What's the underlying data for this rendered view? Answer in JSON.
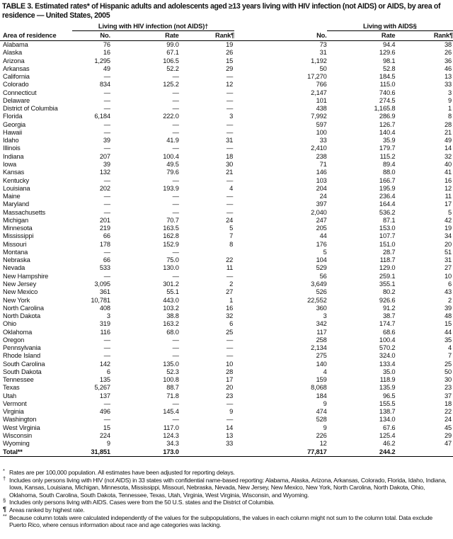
{
  "title": "TABLE 3. Estimated rates* of Hispanic adults and adolescents aged ≥13 years living with HIV infection (not AIDS) or AIDS, by area of residence — United States, 2005",
  "groups": {
    "hiv": "Living with HIV infection (not AIDS)†",
    "aids": "Living with AIDS§"
  },
  "columns": {
    "area": "Area of residence",
    "no": "No.",
    "rate": "Rate",
    "rank": "Rank¶"
  },
  "rows": [
    [
      "Alabama",
      "76",
      "99.0",
      "19",
      "73",
      "94.4",
      "38"
    ],
    [
      "Alaska",
      "16",
      "67.1",
      "26",
      "31",
      "129.6",
      "26"
    ],
    [
      "Arizona",
      "1,295",
      "106.5",
      "15",
      "1,192",
      "98.1",
      "36"
    ],
    [
      "Arkansas",
      "49",
      "52.2",
      "29",
      "50",
      "52.8",
      "46"
    ],
    [
      "California",
      "—",
      "—",
      "—",
      "17,270",
      "184.5",
      "13"
    ],
    [
      "Colorado",
      "834",
      "125.2",
      "12",
      "766",
      "115.0",
      "33"
    ],
    [
      "Connecticut",
      "—",
      "—",
      "—",
      "2,147",
      "740.6",
      "3"
    ],
    [
      "Delaware",
      "—",
      "—",
      "—",
      "101",
      "274.5",
      "9"
    ],
    [
      "District of Columbia",
      "—",
      "—",
      "—",
      "438",
      "1,165.8",
      "1"
    ],
    [
      "Florida",
      "6,184",
      "222.0",
      "3",
      "7,992",
      "286.9",
      "8"
    ],
    [
      "Georgia",
      "—",
      "—",
      "—",
      "597",
      "126.7",
      "28"
    ],
    [
      "Hawaii",
      "—",
      "—",
      "—",
      "100",
      "140.4",
      "21"
    ],
    [
      "Idaho",
      "39",
      "41.9",
      "31",
      "33",
      "35.9",
      "49"
    ],
    [
      "Illinois",
      "—",
      "—",
      "—",
      "2,410",
      "179.7",
      "14"
    ],
    [
      "Indiana",
      "207",
      "100.4",
      "18",
      "238",
      "115.2",
      "32"
    ],
    [
      "Iowa",
      "39",
      "49.5",
      "30",
      "71",
      "89.4",
      "40"
    ],
    [
      "Kansas",
      "132",
      "79.6",
      "21",
      "146",
      "88.0",
      "41"
    ],
    [
      "Kentucky",
      "—",
      "—",
      "—",
      "103",
      "166.7",
      "16"
    ],
    [
      "Louisiana",
      "202",
      "193.9",
      "4",
      "204",
      "195.9",
      "12"
    ],
    [
      "Maine",
      "—",
      "—",
      "—",
      "24",
      "236.4",
      "11"
    ],
    [
      "Maryland",
      "—",
      "—",
      "—",
      "397",
      "164.4",
      "17"
    ],
    [
      "Massachusetts",
      "—",
      "—",
      "—",
      "2,040",
      "536.2",
      "5"
    ],
    [
      "Michigan",
      "201",
      "70.7",
      "24",
      "247",
      "87.1",
      "42"
    ],
    [
      "Minnesota",
      "219",
      "163.5",
      "5",
      "205",
      "153.0",
      "19"
    ],
    [
      "Mississippi",
      "66",
      "162.8",
      "7",
      "44",
      "107.7",
      "34"
    ],
    [
      "Missouri",
      "178",
      "152.9",
      "8",
      "176",
      "151.0",
      "20"
    ],
    [
      "Montana",
      "—",
      "—",
      "",
      "5",
      "28.7",
      "51"
    ],
    [
      "Nebraska",
      "66",
      "75.0",
      "22",
      "104",
      "118.7",
      "31"
    ],
    [
      "Nevada",
      "533",
      "130.0",
      "11",
      "529",
      "129.0",
      "27"
    ],
    [
      "New Hampshire",
      "—",
      "—",
      "—",
      "56",
      "259.1",
      "10"
    ],
    [
      "New Jersey",
      "3,095",
      "301.2",
      "2",
      "3,649",
      "355.1",
      "6"
    ],
    [
      "New Mexico",
      "361",
      "55.1",
      "27",
      "526",
      "80.2",
      "43"
    ],
    [
      "New York",
      "10,781",
      "443.0",
      "1",
      "22,552",
      "926.6",
      "2"
    ],
    [
      "North Carolina",
      "408",
      "103.2",
      "16",
      "360",
      "91.2",
      "39"
    ],
    [
      "North Dakota",
      "3",
      "38.8",
      "32",
      "3",
      "38.7",
      "48"
    ],
    [
      "Ohio",
      "319",
      "163.2",
      "6",
      "342",
      "174.7",
      "15"
    ],
    [
      "Oklahoma",
      "116",
      "68.0",
      "25",
      "117",
      "68.6",
      "44"
    ],
    [
      "Oregon",
      "—",
      "—",
      "—",
      "258",
      "100.4",
      "35"
    ],
    [
      "Pennsylvania",
      "—",
      "—",
      "—",
      "2,134",
      "570.2",
      "4"
    ],
    [
      "Rhode Island",
      "—",
      "—",
      "—",
      "275",
      "324.0",
      "7"
    ],
    [
      "South Carolina",
      "142",
      "135.0",
      "10",
      "140",
      "133.4",
      "25"
    ],
    [
      "South Dakota",
      "6",
      "52.3",
      "28",
      "4",
      "35.0",
      "50"
    ],
    [
      "Tennessee",
      "135",
      "100.8",
      "17",
      "159",
      "118.9",
      "30"
    ],
    [
      "Texas",
      "5,267",
      "88.7",
      "20",
      "8,068",
      "135.9",
      "23"
    ],
    [
      "Utah",
      "137",
      "71.8",
      "23",
      "184",
      "96.5",
      "37"
    ],
    [
      "Vermont",
      "—",
      "—",
      "—",
      "9",
      "155.5",
      "18"
    ],
    [
      "Virginia",
      "496",
      "145.4",
      "9",
      "474",
      "138.7",
      "22"
    ],
    [
      "Washington",
      "—",
      "—",
      "—",
      "528",
      "134.0",
      "24"
    ],
    [
      "West Virginia",
      "15",
      "117.0",
      "14",
      "9",
      "67.6",
      "45"
    ],
    [
      "Wisconsin",
      "224",
      "124.3",
      "13",
      "226",
      "125.4",
      "29"
    ],
    [
      "Wyoming",
      "9",
      "34.3",
      "33",
      "12",
      "46.2",
      "47"
    ]
  ],
  "total": [
    "Total**",
    "31,851",
    "173.0",
    "",
    "77,817",
    "244.2",
    ""
  ],
  "footnotes": [
    {
      "mark": "*",
      "text": "Rates are per 100,000 population. All estimates have been adjusted for reporting delays."
    },
    {
      "mark": "†",
      "text": "Includes only persons living with HIV (not AIDS) in 33 states with confidential name-based reporting: Alabama, Alaska, Arizona, Arkansas, Colorado, Florida, Idaho, Indiana, Iowa, Kansas, Louisiana, Michigan, Minnesota, Mississippi, Missouri, Nebraska, Nevada, New Jersey, New Mexico, New York, North Carolina, North Dakota, Ohio, Oklahoma, South Carolina, South Dakota, Tennessee, Texas, Utah, Virginia, West Virginia, Wisconsin, and Wyoming."
    },
    {
      "mark": "§",
      "text": "Includes only persons living with AIDS. Cases were from the 50 U.S. states and the District of Columbia."
    },
    {
      "mark": "¶",
      "text": "Areas ranked by highest rate."
    },
    {
      "mark": "**",
      "text": "Because column totals were calculated independently of the values for the subpopulations, the values in each column might not sum to the column total. Data exclude Puerto Rico, where census information about race and age categories was lacking."
    }
  ]
}
